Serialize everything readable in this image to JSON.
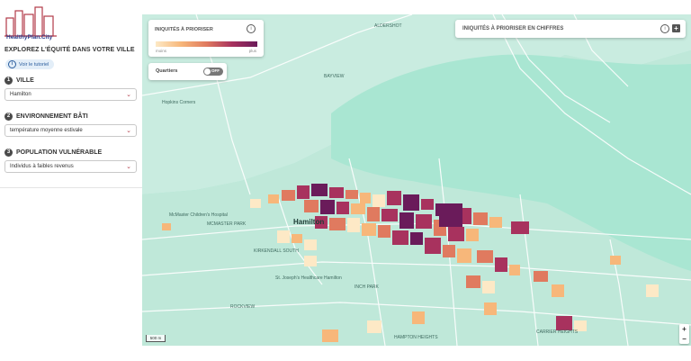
{
  "sidebar": {
    "logo_text": "HealthyPlan.City",
    "explore_title": "EXPLOREZ L'ÉQUITÉ DANS VOTRE VILLE",
    "tutorial_label": "Voir le tutoriel",
    "steps": [
      {
        "num": "1",
        "title": "VILLE",
        "selected": "Hamilton"
      },
      {
        "num": "2",
        "title": "ENVIRONNEMENT BÂTI",
        "selected": "température moyenne estivale"
      },
      {
        "num": "3",
        "title": "POPULATION VULNÉRABLE",
        "selected": "Individus à faibles revenus"
      }
    ]
  },
  "map": {
    "legend": {
      "title": "INIQUITÉS À PRIORISER",
      "low": "moins",
      "high": "plus"
    },
    "quartiers": {
      "label": "Quartiers",
      "toggle": "OFF"
    },
    "chiffres": {
      "title": "INIQUITÉS À PRIORISER EN CHIFFRES"
    },
    "scale": "500 m",
    "zoom_in": "+",
    "zoom_out": "−",
    "labels": {
      "hamilton": "Hamilton",
      "hopkins": "Hopkins Corners",
      "aldershot": "ALDERSHOT",
      "bayview": "BAYVIEW",
      "mcmaster_park": "MCMASTER PARK",
      "kirkendall": "KIRKENDALL SOUTH",
      "inch_park": "INCH PARK",
      "rockview": "ROCKVIEW",
      "hampton": "HAMPTON HEIGHTS",
      "carrier": "CARRIER HEIGHTS",
      "st_josephs": "St. Joseph's Healthcare Hamilton",
      "mcmaster_children": "McMaster Children's Hospital"
    }
  },
  "colors": {
    "water": "#a9e6d2",
    "low": "#fde9c6",
    "mid": "#e07a5f",
    "high": "#6a1b5a"
  }
}
